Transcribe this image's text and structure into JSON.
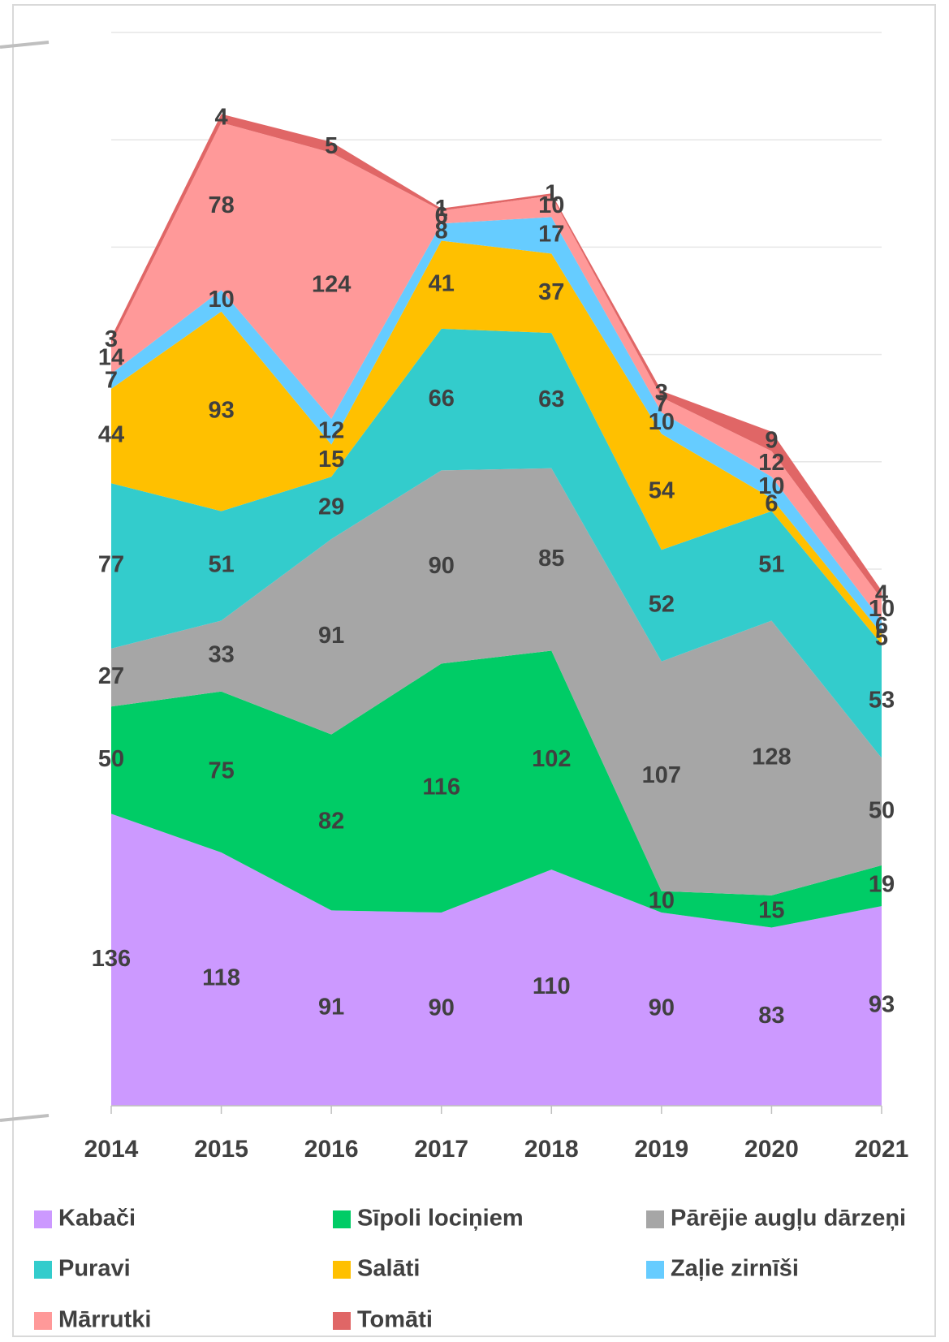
{
  "chart_data": {
    "type": "stacked_area",
    "categories": [
      "2014",
      "2015",
      "2016",
      "2017",
      "2018",
      "2019",
      "2020",
      "2021"
    ],
    "series": [
      {
        "name": "Kabači",
        "color": "#cc99ff",
        "values": [
          136,
          118,
          91,
          90,
          110,
          90,
          83,
          93
        ]
      },
      {
        "name": "Sīpoli lociņiem",
        "color": "#00cc66",
        "values": [
          50,
          75,
          82,
          116,
          102,
          10,
          15,
          19
        ]
      },
      {
        "name": "Pārējie augļu dārzeņi",
        "color": "#a6a6a6",
        "values": [
          27,
          33,
          91,
          90,
          85,
          107,
          128,
          50
        ]
      },
      {
        "name": "Puravi",
        "color": "#33cccc",
        "values": [
          77,
          51,
          29,
          66,
          63,
          52,
          51,
          53
        ]
      },
      {
        "name": "Salāti",
        "color": "#ffc000",
        "values": [
          44,
          93,
          15,
          41,
          37,
          54,
          6,
          5
        ]
      },
      {
        "name": "Zaļie zirnīši",
        "color": "#66ccff",
        "values": [
          7,
          10,
          12,
          8,
          17,
          10,
          10,
          6
        ]
      },
      {
        "name": "Mārrutki",
        "color": "#ff9999",
        "values": [
          14,
          78,
          124,
          6,
          10,
          7,
          12,
          10
        ]
      },
      {
        "name": "Tomāti",
        "color": "#e06666",
        "values": [
          3,
          4,
          5,
          1,
          1,
          3,
          9,
          4
        ]
      }
    ],
    "ylim": [
      0,
      500
    ],
    "yticks": [
      0,
      50,
      100,
      150,
      200,
      250,
      300,
      350,
      400,
      450,
      500
    ],
    "grid": true
  }
}
